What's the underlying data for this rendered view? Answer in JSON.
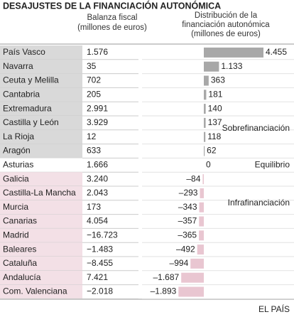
{
  "title": "DESAJUSTES DE LA FINANCIACIÓN AUTONÓMICA",
  "footer": "EL PAÍS",
  "table": {
    "balance_header": [
      "Balanza fiscal",
      "(millones de euros)"
    ],
    "balance": [
      "1.576",
      "35",
      "702",
      "205",
      "2.991",
      "3.929",
      "12",
      "633",
      "1.666",
      "3.240",
      "2.043",
      "173",
      "4.054",
      "−16.723",
      "−1.483",
      "−8.455",
      "7.421",
      "−2.018"
    ]
  },
  "chart_data": {
    "type": "bar",
    "orientation": "horizontal",
    "header": [
      "Distribución de la",
      "financiación autonómica",
      "(millones de euros)"
    ],
    "categories": [
      "País Vasco",
      "Navarra",
      "Ceuta y Melilla",
      "Cantabria",
      "Extremadura",
      "Castilla y León",
      "La Rioja",
      "Aragón",
      "Asturias",
      "Galicia",
      "Castilla-La Mancha",
      "Murcia",
      "Canarias",
      "Madrid",
      "Baleares",
      "Cataluña",
      "Andalucía",
      "Com. Valenciana"
    ],
    "values": [
      4455,
      1133,
      363,
      181,
      140,
      137,
      118,
      62,
      0,
      -84,
      -293,
      -343,
      -357,
      -365,
      -492,
      -994,
      -1687,
      -1893
    ],
    "value_labels": [
      "4.455",
      "1.133",
      "363",
      "181",
      "140",
      "137",
      "118",
      "62",
      "0",
      "–84",
      "–293",
      "–343",
      "–357",
      "–365",
      "–492",
      "–994",
      "–1.687",
      "–1.893"
    ],
    "colors": {
      "positive": "#a8a8a8",
      "negative": "#e9c6d1"
    },
    "annotations": [
      "Sobrefinanciación",
      "Equilibrio",
      "Infrafinanciación"
    ]
  }
}
